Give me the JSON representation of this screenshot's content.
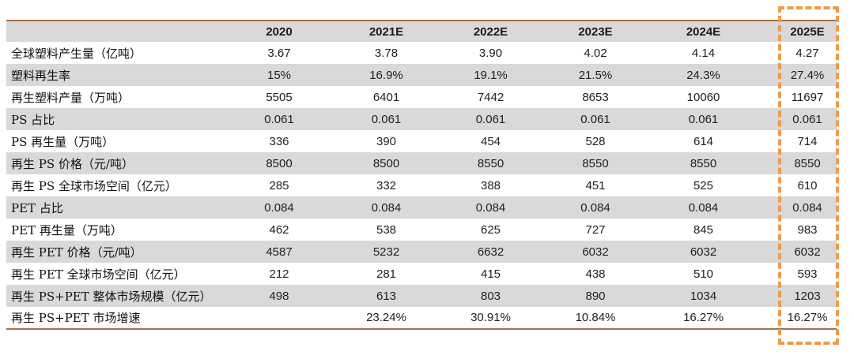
{
  "chart_data": {
    "type": "table",
    "columns": [
      "",
      "2020",
      "2021E",
      "2022E",
      "2023E",
      "2024E",
      "2025E"
    ],
    "rows": [
      {
        "label": "全球塑料产生量（亿吨）",
        "values": [
          "3.67",
          "3.78",
          "3.90",
          "4.02",
          "4.14",
          "4.27"
        ]
      },
      {
        "label": "塑料再生率",
        "values": [
          "15%",
          "16.9%",
          "19.1%",
          "21.5%",
          "24.3%",
          "27.4%"
        ]
      },
      {
        "label": "再生塑料产量（万吨）",
        "values": [
          "5505",
          "6401",
          "7442",
          "8653",
          "10060",
          "11697"
        ]
      },
      {
        "label": "PS 占比",
        "values": [
          "0.061",
          "0.061",
          "0.061",
          "0.061",
          "0.061",
          "0.061"
        ]
      },
      {
        "label": "PS 再生量（万吨）",
        "values": [
          "336",
          "390",
          "454",
          "528",
          "614",
          "714"
        ]
      },
      {
        "label": "再生 PS 价格（元/吨）",
        "values": [
          "8500",
          "8500",
          "8550",
          "8550",
          "8550",
          "8550"
        ]
      },
      {
        "label": "再生 PS 全球市场空间（亿元）",
        "values": [
          "285",
          "332",
          "388",
          "451",
          "525",
          "610"
        ]
      },
      {
        "label": "PET 占比",
        "values": [
          "0.084",
          "0.084",
          "0.084",
          "0.084",
          "0.084",
          "0.084"
        ]
      },
      {
        "label": "PET 再生量（万吨）",
        "values": [
          "462",
          "538",
          "625",
          "727",
          "845",
          "983"
        ]
      },
      {
        "label": "再生 PET 价格（元/吨）",
        "values": [
          "4587",
          "5232",
          "6632",
          "6032",
          "6032",
          "6032"
        ]
      },
      {
        "label": "再生 PET 全球市场空间（亿元）",
        "values": [
          "212",
          "281",
          "415",
          "438",
          "510",
          "593"
        ]
      },
      {
        "label": "再生 PS+PET 整体市场规模（亿元）",
        "values": [
          "498",
          "613",
          "803",
          "890",
          "1034",
          "1203"
        ]
      },
      {
        "label": "再生 PS+PET 市场增速",
        "values": [
          "",
          "23.24%",
          "30.91%",
          "10.84%",
          "16.27%",
          "16.27%"
        ]
      }
    ],
    "highlight_column": "2025E",
    "layout": {
      "stripes": true,
      "legend": "none"
    }
  },
  "colors": {
    "rule": "#a5714e",
    "stripe": "#d9d9d9",
    "highlight_border": "#ef9b4a",
    "text": "#1f1f1f"
  }
}
